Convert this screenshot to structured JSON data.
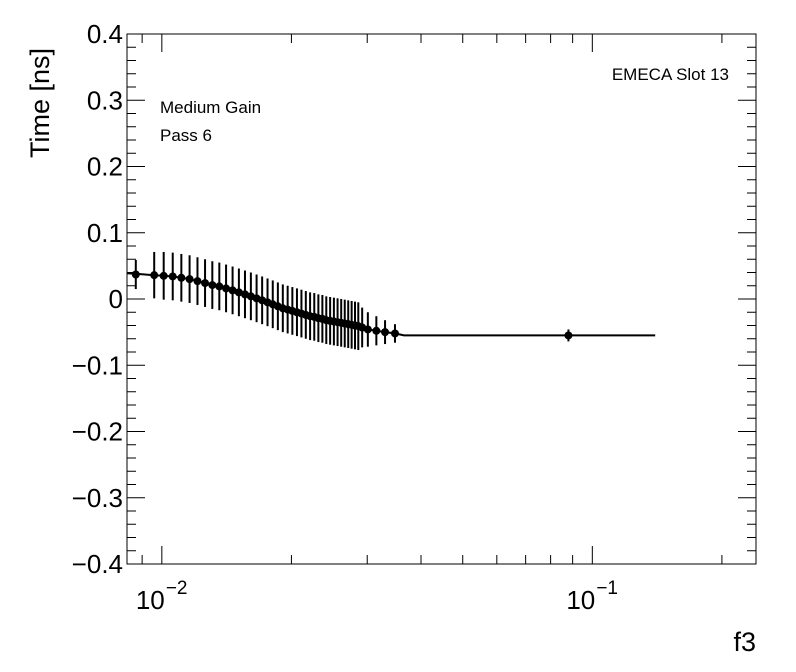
{
  "chart_data": {
    "type": "scatter",
    "xlabel": "f3",
    "ylabel": "Time [ns]",
    "x_scale": "log",
    "xlim": [
      0.0083,
      0.24
    ],
    "ylim": [
      -0.4,
      0.4
    ],
    "y_ticks": [
      -0.4,
      -0.3,
      -0.2,
      -0.1,
      0,
      0.1,
      0.2,
      0.3,
      0.4
    ],
    "y_tick_labels": [
      "−0.4",
      "−0.3",
      "−0.2",
      "−0.1",
      "0",
      "0.1",
      "0.2",
      "0.3",
      "0.4"
    ],
    "x_ticks": [
      0.01,
      0.1
    ],
    "x_tick_labels": [
      {
        "base": "10",
        "exp": "−2"
      },
      {
        "base": "10",
        "exp": "−1"
      }
    ],
    "annotations": {
      "slot": "EMECA Slot 13",
      "gain": "Medium Gain",
      "pass": "Pass 6"
    },
    "grid": false,
    "series": [
      {
        "x": [
          0.0087,
          0.0096,
          0.0101,
          0.0106,
          0.0111,
          0.0116,
          0.0121,
          0.0126,
          0.0131,
          0.0136,
          0.0141,
          0.0146,
          0.0151,
          0.0156,
          0.0161,
          0.0166,
          0.0171,
          0.0176,
          0.0181,
          0.0186,
          0.0191,
          0.0196,
          0.0201,
          0.0206,
          0.0211,
          0.0216,
          0.0221,
          0.0226,
          0.0231,
          0.0236,
          0.0241,
          0.0246,
          0.0251,
          0.0256,
          0.0261,
          0.0266,
          0.0271,
          0.0276,
          0.0281,
          0.0286,
          0.0292,
          0.0301,
          0.0315,
          0.033,
          0.0348,
          0.088
        ],
        "y": [
          0.037,
          0.036,
          0.035,
          0.034,
          0.032,
          0.03,
          0.027,
          0.024,
          0.021,
          0.019,
          0.016,
          0.013,
          0.01,
          0.007,
          0.004,
          0.001,
          -0.002,
          -0.005,
          -0.008,
          -0.011,
          -0.014,
          -0.016,
          -0.018,
          -0.02,
          -0.022,
          -0.024,
          -0.026,
          -0.027,
          -0.029,
          -0.03,
          -0.032,
          -0.033,
          -0.034,
          -0.035,
          -0.036,
          -0.037,
          -0.038,
          -0.039,
          -0.04,
          -0.041,
          -0.043,
          -0.046,
          -0.048,
          -0.05,
          -0.052,
          -0.055
        ],
        "yerr": [
          0.022,
          0.035,
          0.036,
          0.036,
          0.036,
          0.036,
          0.036,
          0.036,
          0.036,
          0.036,
          0.036,
          0.036,
          0.036,
          0.036,
          0.036,
          0.036,
          0.036,
          0.036,
          0.036,
          0.036,
          0.036,
          0.036,
          0.036,
          0.036,
          0.036,
          0.036,
          0.036,
          0.036,
          0.036,
          0.036,
          0.036,
          0.036,
          0.036,
          0.036,
          0.036,
          0.036,
          0.036,
          0.036,
          0.036,
          0.036,
          0.03,
          0.026,
          0.022,
          0.018,
          0.014,
          0.009
        ]
      }
    ],
    "fit_line": {
      "x": [
        0.0083,
        0.0087,
        0.0096,
        0.0101,
        0.0106,
        0.0111,
        0.0116,
        0.0121,
        0.0126,
        0.0131,
        0.0136,
        0.0141,
        0.0146,
        0.0151,
        0.0156,
        0.0161,
        0.0166,
        0.0171,
        0.0176,
        0.0181,
        0.0186,
        0.0191,
        0.0196,
        0.0201,
        0.0206,
        0.0211,
        0.0216,
        0.0221,
        0.0226,
        0.0231,
        0.0236,
        0.0241,
        0.0246,
        0.0251,
        0.0256,
        0.0261,
        0.0266,
        0.0271,
        0.0276,
        0.0281,
        0.0286,
        0.0292,
        0.0301,
        0.0315,
        0.033,
        0.0348,
        0.0365,
        0.14
      ],
      "y": [
        0.039,
        0.038,
        0.036,
        0.035,
        0.034,
        0.032,
        0.03,
        0.027,
        0.024,
        0.021,
        0.019,
        0.016,
        0.013,
        0.01,
        0.007,
        0.004,
        0.001,
        -0.002,
        -0.005,
        -0.008,
        -0.011,
        -0.014,
        -0.016,
        -0.018,
        -0.02,
        -0.022,
        -0.024,
        -0.026,
        -0.027,
        -0.029,
        -0.03,
        -0.032,
        -0.033,
        -0.034,
        -0.035,
        -0.036,
        -0.037,
        -0.038,
        -0.039,
        -0.04,
        -0.041,
        -0.043,
        -0.046,
        -0.048,
        -0.05,
        -0.052,
        -0.055,
        -0.055
      ]
    }
  }
}
